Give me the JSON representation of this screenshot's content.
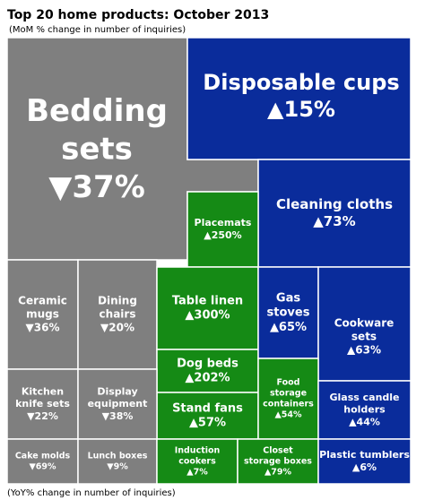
{
  "chart_data": {
    "type": "treemap",
    "title": "Top 20 home products: October 2013",
    "subtitle": "(MoM % change in number of inquiries)",
    "note": "(YoY% change in number of inquiries)",
    "items": [
      {
        "label": [
          "Bedding",
          "sets"
        ],
        "value": -37,
        "value_label": "▼37%",
        "color": "#7f7f7f"
      },
      {
        "label": [
          "Disposable cups"
        ],
        "value": 15,
        "value_label": "▲15%",
        "color": "#0a2c9b"
      },
      {
        "label": [
          "Cleaning cloths"
        ],
        "value": 73,
        "value_label": "▲73%",
        "color": "#0a2c9b"
      },
      {
        "label": [
          "Placemats"
        ],
        "value": 250,
        "value_label": "▲250%",
        "color": "#158a15"
      },
      {
        "label": [
          "Ceramic",
          "mugs"
        ],
        "value": -36,
        "value_label": "▼36%",
        "color": "#7f7f7f"
      },
      {
        "label": [
          "Dining",
          "chairs"
        ],
        "value": -20,
        "value_label": "▼20%",
        "color": "#7f7f7f"
      },
      {
        "label": [
          "Table linen"
        ],
        "value": 300,
        "value_label": "▲300%",
        "color": "#158a15"
      },
      {
        "label": [
          "Dog beds"
        ],
        "value": 202,
        "value_label": "▲202%",
        "color": "#158a15"
      },
      {
        "label": [
          "Stand fans"
        ],
        "value": 57,
        "value_label": "▲57%",
        "color": "#158a15"
      },
      {
        "label": [
          "Gas",
          "stoves"
        ],
        "value": 65,
        "value_label": "▲65%",
        "color": "#0a2c9b"
      },
      {
        "label": [
          "Cookware",
          "sets"
        ],
        "value": 63,
        "value_label": "▲63%",
        "color": "#0a2c9b"
      },
      {
        "label": [
          "Food",
          "storage",
          "containers"
        ],
        "value": 54,
        "value_label": "▲54%",
        "color": "#158a15"
      },
      {
        "label": [
          "Glass candle",
          "holders"
        ],
        "value": 44,
        "value_label": "▲44%",
        "color": "#0a2c9b"
      },
      {
        "label": [
          "Kitchen",
          "knife sets"
        ],
        "value": -22,
        "value_label": "▼22%",
        "color": "#7f7f7f"
      },
      {
        "label": [
          "Display",
          "equipment"
        ],
        "value": -38,
        "value_label": "▼38%",
        "color": "#7f7f7f"
      },
      {
        "label": [
          "Cake molds"
        ],
        "value": -69,
        "value_label": "▼69%",
        "color": "#7f7f7f"
      },
      {
        "label": [
          "Lunch boxes"
        ],
        "value": -9,
        "value_label": "▼9%",
        "color": "#7f7f7f"
      },
      {
        "label": [
          "Induction",
          "cookers"
        ],
        "value": 7,
        "value_label": "▲7%",
        "color": "#158a15"
      },
      {
        "label": [
          "Closet",
          "storage boxes"
        ],
        "value": 79,
        "value_label": "▲79%",
        "color": "#158a15"
      },
      {
        "label": [
          "Plastic tumblers"
        ],
        "value": 6,
        "value_label": "▲6%",
        "color": "#0a2c9b"
      }
    ]
  }
}
